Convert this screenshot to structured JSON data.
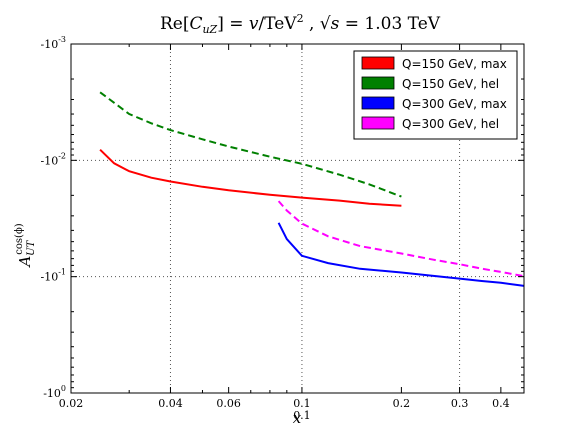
{
  "chart_data": {
    "type": "line",
    "title": "Re[C_uZ] = v/TeV², √s = 1.03 TeV",
    "xlabel": "x",
    "ylabel": "A_UT^cos(φ)",
    "x_scale": "log",
    "y_scale": "log",
    "xlim": [
      0.02,
      0.47
    ],
    "ylim": [
      -0.001,
      -1
    ],
    "grid": true,
    "legend_position": "top-right",
    "x_ticks": [
      {
        "value": 0.02,
        "label": "0.02"
      },
      {
        "value": 0.04,
        "label": "0.04"
      },
      {
        "value": 0.06,
        "label": "0.06"
      },
      {
        "value": 0.1,
        "label": "0.1"
      },
      {
        "value": 0.2,
        "label": "0.2"
      },
      {
        "value": 0.3,
        "label": "0.3"
      },
      {
        "value": 0.4,
        "label": "0.4"
      }
    ],
    "x_major_grid": [
      0.04,
      0.1,
      0.3
    ],
    "x_minor_ticks": [
      0.03,
      0.05,
      0.07,
      0.08,
      0.09
    ],
    "x_minor_labels": [
      {
        "value": 0.1,
        "label": "0.1"
      }
    ],
    "y_ticks": [
      {
        "value": -0.001,
        "label": "-10",
        "exp": "-3"
      },
      {
        "value": -0.01,
        "label": "-10",
        "exp": "-2"
      },
      {
        "value": -0.1,
        "label": "-10",
        "exp": "-1"
      },
      {
        "value": -1,
        "label": "-10",
        "exp": "0"
      }
    ],
    "series": [
      {
        "name": "Q=150 GeV, max",
        "color": "#ff0000",
        "dash": "solid",
        "x": [
          0.0245,
          0.027,
          0.03,
          0.035,
          0.04,
          0.05,
          0.06,
          0.08,
          0.1,
          0.13,
          0.16,
          0.2
        ],
        "y": [
          -0.0081,
          -0.0106,
          -0.0124,
          -0.0141,
          -0.0152,
          -0.0169,
          -0.0181,
          -0.0198,
          -0.0209,
          -0.0222,
          -0.0236,
          -0.0246
        ]
      },
      {
        "name": "Q=150 GeV, hel",
        "color": "#008000",
        "dash": "dashed",
        "x": [
          0.0245,
          0.03,
          0.035,
          0.04,
          0.05,
          0.06,
          0.08,
          0.1,
          0.13,
          0.16,
          0.2
        ],
        "y": [
          -0.0026,
          -0.004,
          -0.0048,
          -0.0055,
          -0.0066,
          -0.0076,
          -0.0093,
          -0.0107,
          -0.0133,
          -0.0161,
          -0.0205
        ]
      },
      {
        "name": "Q=300 GeV, max",
        "color": "#0000ff",
        "dash": "solid",
        "x": [
          0.085,
          0.09,
          0.1,
          0.12,
          0.15,
          0.2,
          0.25,
          0.3,
          0.35,
          0.4,
          0.47
        ],
        "y": [
          -0.0344,
          -0.0475,
          -0.0661,
          -0.0765,
          -0.0855,
          -0.092,
          -0.0985,
          -0.104,
          -0.109,
          -0.113,
          -0.12
        ]
      },
      {
        "name": "Q=300 GeV, hel",
        "color": "#ff00ff",
        "dash": "dashed",
        "x": [
          0.085,
          0.09,
          0.1,
          0.12,
          0.15,
          0.2,
          0.25,
          0.3,
          0.35,
          0.4,
          0.47
        ],
        "y": [
          -0.0224,
          -0.027,
          -0.035,
          -0.045,
          -0.0546,
          -0.0632,
          -0.0715,
          -0.0781,
          -0.0854,
          -0.091,
          -0.099
        ]
      }
    ]
  }
}
